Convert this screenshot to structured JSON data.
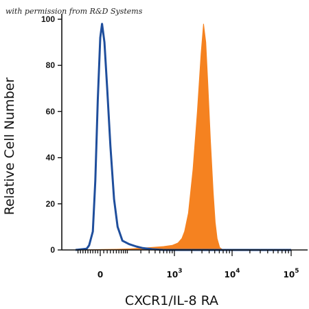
{
  "watermark": "with permission from R&D Systems",
  "chart_data": {
    "type": "area",
    "xlabel": "CXCR1/IL-8 RA",
    "ylabel": "Relative Cell Number",
    "x_scale": "biexponential",
    "y_ticks": [
      0,
      20,
      40,
      60,
      80,
      100
    ],
    "ylim": [
      0,
      100
    ],
    "x_ticks": [
      {
        "value": 0,
        "base": "0",
        "exp": ""
      },
      {
        "value": 1000,
        "base": "10",
        "exp": "3"
      },
      {
        "value": 10000,
        "base": "10",
        "exp": "4"
      },
      {
        "value": 100000,
        "base": "10",
        "exp": "5"
      }
    ],
    "grid": false,
    "series": [
      {
        "color": "#1f4e9c",
        "style": "outline",
        "points": [
          [
            -100,
            0
          ],
          [
            -55,
            0.5
          ],
          [
            -45,
            2
          ],
          [
            -30,
            8
          ],
          [
            -20,
            30
          ],
          [
            -10,
            65
          ],
          [
            0,
            92
          ],
          [
            5,
            98
          ],
          [
            12,
            90
          ],
          [
            20,
            70
          ],
          [
            30,
            45
          ],
          [
            42,
            22
          ],
          [
            55,
            10
          ],
          [
            75,
            4
          ],
          [
            110,
            2.5
          ],
          [
            160,
            1.5
          ],
          [
            220,
            0.8
          ],
          [
            350,
            0.3
          ],
          [
            600,
            0
          ],
          [
            100000,
            0
          ]
        ]
      },
      {
        "color": "#f58220",
        "style": "filled",
        "points": [
          [
            -100,
            0
          ],
          [
            10,
            0.2
          ],
          [
            50,
            0.3
          ],
          [
            120,
            0.5
          ],
          [
            300,
            1
          ],
          [
            600,
            1.5
          ],
          [
            900,
            2
          ],
          [
            1150,
            3
          ],
          [
            1350,
            5
          ],
          [
            1500,
            8
          ],
          [
            1750,
            16
          ],
          [
            2100,
            35
          ],
          [
            2500,
            60
          ],
          [
            2900,
            85
          ],
          [
            3200,
            98
          ],
          [
            3500,
            90
          ],
          [
            3800,
            72
          ],
          [
            4200,
            48
          ],
          [
            4700,
            25
          ],
          [
            5100,
            12
          ],
          [
            5500,
            5
          ],
          [
            6100,
            1
          ],
          [
            7000,
            0
          ],
          [
            100000,
            0
          ]
        ]
      }
    ]
  }
}
